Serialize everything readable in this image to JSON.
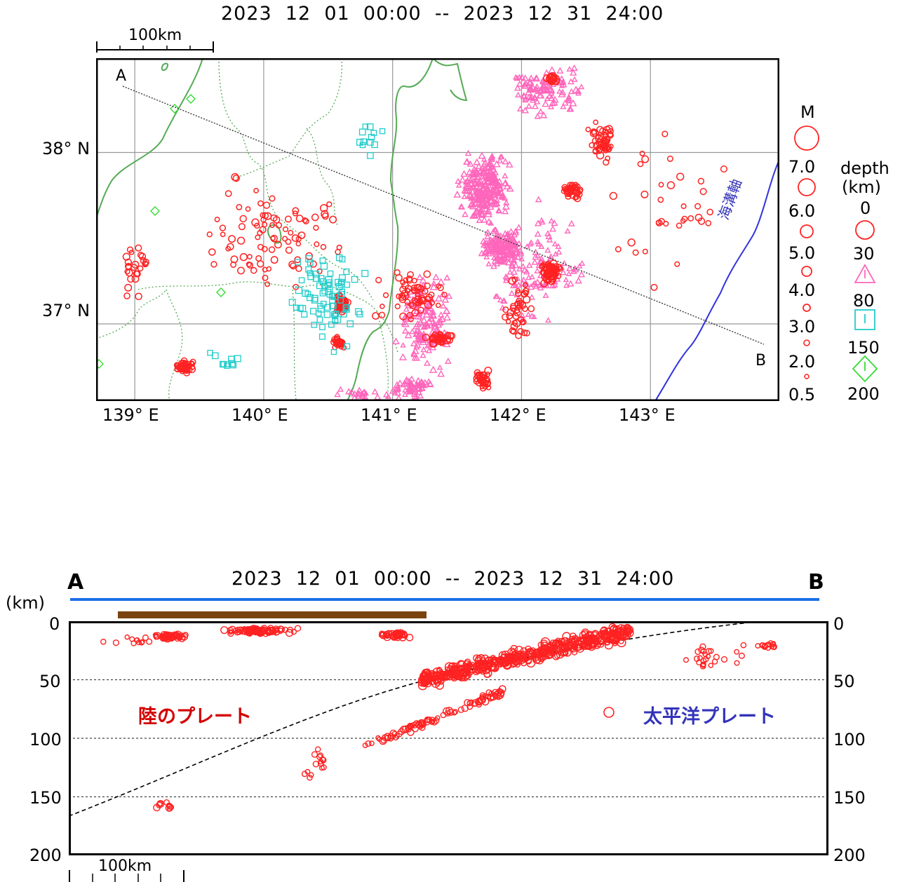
{
  "map": {
    "title": "2023  12  01  00:00  --  2023  12  31  24:00",
    "scale_label": "100km",
    "section_line": {
      "start_label": "A",
      "end_label": "B"
    },
    "lat_ticks": [
      {
        "label": "38° N",
        "value": 38
      },
      {
        "label": "37° N",
        "value": 37
      }
    ],
    "lon_ticks": [
      {
        "label": "139° E",
        "value": 139
      },
      {
        "label": "140° E",
        "value": 140
      },
      {
        "label": "141° E",
        "value": 141
      },
      {
        "label": "142° E",
        "value": 142
      },
      {
        "label": "143° E",
        "value": 143
      }
    ],
    "extent": {
      "lon_min": 138.7,
      "lon_max": 144.0,
      "lat_min": 36.55,
      "lat_max": 38.55
    },
    "trench_label": "海溝軸",
    "colors": {
      "coast": "#55aa55",
      "trench": "#3333dd",
      "shallow": "#ff2222",
      "mid": "#ff66bb",
      "deep": "#22cccc",
      "deepest": "#33dd33"
    }
  },
  "legend": {
    "magnitude_title": "M",
    "magnitudes": [
      "7.0",
      "6.0",
      "5.0",
      "4.0",
      "3.0",
      "2.0",
      "0.5"
    ],
    "depth_title": "depth",
    "depth_unit": "(km)",
    "depths": [
      "0",
      "30",
      "80",
      "150",
      "200"
    ]
  },
  "section": {
    "title": "2023  12  01  00:00  --  2023  12  31  24:00",
    "start_label": "A",
    "end_label": "B",
    "unit_label": "(km)",
    "depth_ticks": [
      "0",
      "50",
      "100",
      "150",
      "200"
    ],
    "depth_max": 200,
    "land_plate_label": "陸のプレート",
    "pacific_plate_label": "太平洋プレート",
    "scale_label": "100km"
  }
}
